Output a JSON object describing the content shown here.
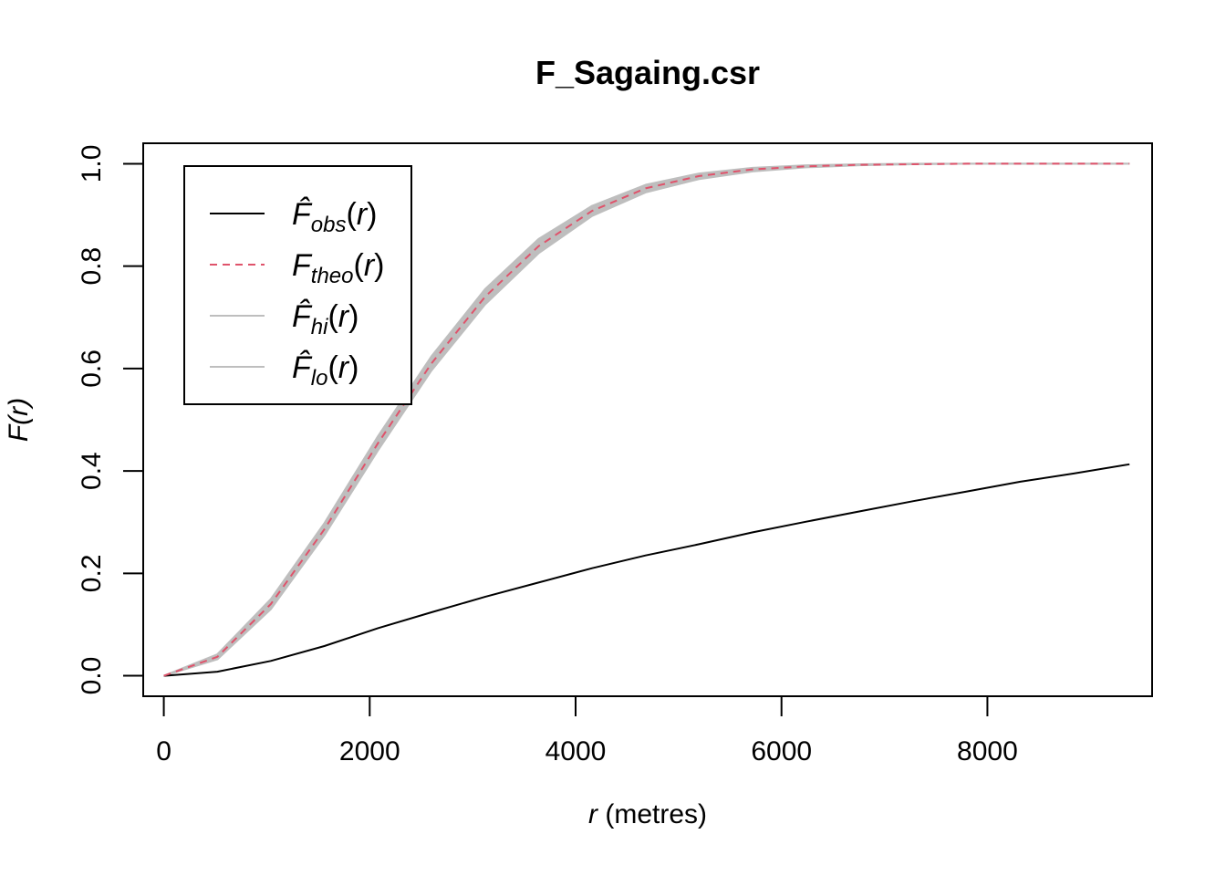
{
  "chart_data": {
    "type": "line",
    "title": "F_Sagaing.csr",
    "xlabel_var": "r",
    "xlabel_unit": " (metres)",
    "ylabel": "F(r)",
    "xlim": [
      -200,
      9600
    ],
    "ylim": [
      -0.04,
      1.04
    ],
    "x_ticks": [
      0,
      2000,
      4000,
      6000,
      8000
    ],
    "x_tick_labels": [
      "0",
      "2000",
      "4000",
      "6000",
      "8000"
    ],
    "y_ticks": [
      0.0,
      0.2,
      0.4,
      0.6,
      0.8,
      1.0
    ],
    "y_tick_labels": [
      "0.0",
      "0.2",
      "0.4",
      "0.6",
      "0.8",
      "1.0"
    ],
    "legend_position": "top-left",
    "x": [
      0,
      520,
      1040,
      1560,
      2080,
      2600,
      3120,
      3640,
      4160,
      4680,
      5200,
      5720,
      6240,
      6760,
      7280,
      7800,
      8320,
      8840,
      9380
    ],
    "series": [
      {
        "name": "obs",
        "label_base": "F̂",
        "label_sub": "obs",
        "color": "#000000",
        "dash": "solid",
        "values": [
          0.0,
          0.008,
          0.029,
          0.058,
          0.093,
          0.124,
          0.154,
          0.182,
          0.21,
          0.235,
          0.257,
          0.28,
          0.301,
          0.321,
          0.341,
          0.36,
          0.379,
          0.395,
          0.413
        ]
      },
      {
        "name": "theo",
        "label_base": "F",
        "label_sub": "theo",
        "color": "#DF536B",
        "dash": "dashed",
        "values": [
          0.0,
          0.037,
          0.14,
          0.286,
          0.454,
          0.61,
          0.74,
          0.839,
          0.908,
          0.952,
          0.976,
          0.989,
          0.995,
          0.998,
          0.999,
          1.0,
          1.0,
          1.0,
          1.0
        ]
      },
      {
        "name": "hi",
        "label_base": "F̂",
        "label_sub": "hi",
        "color": "#bebebe",
        "dash": "solid",
        "values": [
          0.0,
          0.042,
          0.15,
          0.298,
          0.468,
          0.624,
          0.755,
          0.853,
          0.918,
          0.959,
          0.981,
          0.992,
          0.997,
          0.999,
          1.0,
          1.0,
          1.0,
          1.0,
          1.0
        ]
      },
      {
        "name": "lo",
        "label_base": "F̂",
        "label_sub": "lo",
        "color": "#bebebe",
        "dash": "solid",
        "values": [
          0.0,
          0.032,
          0.13,
          0.274,
          0.44,
          0.596,
          0.725,
          0.825,
          0.898,
          0.944,
          0.97,
          0.985,
          0.993,
          0.997,
          0.999,
          1.0,
          1.0,
          1.0,
          1.0
        ]
      }
    ]
  }
}
